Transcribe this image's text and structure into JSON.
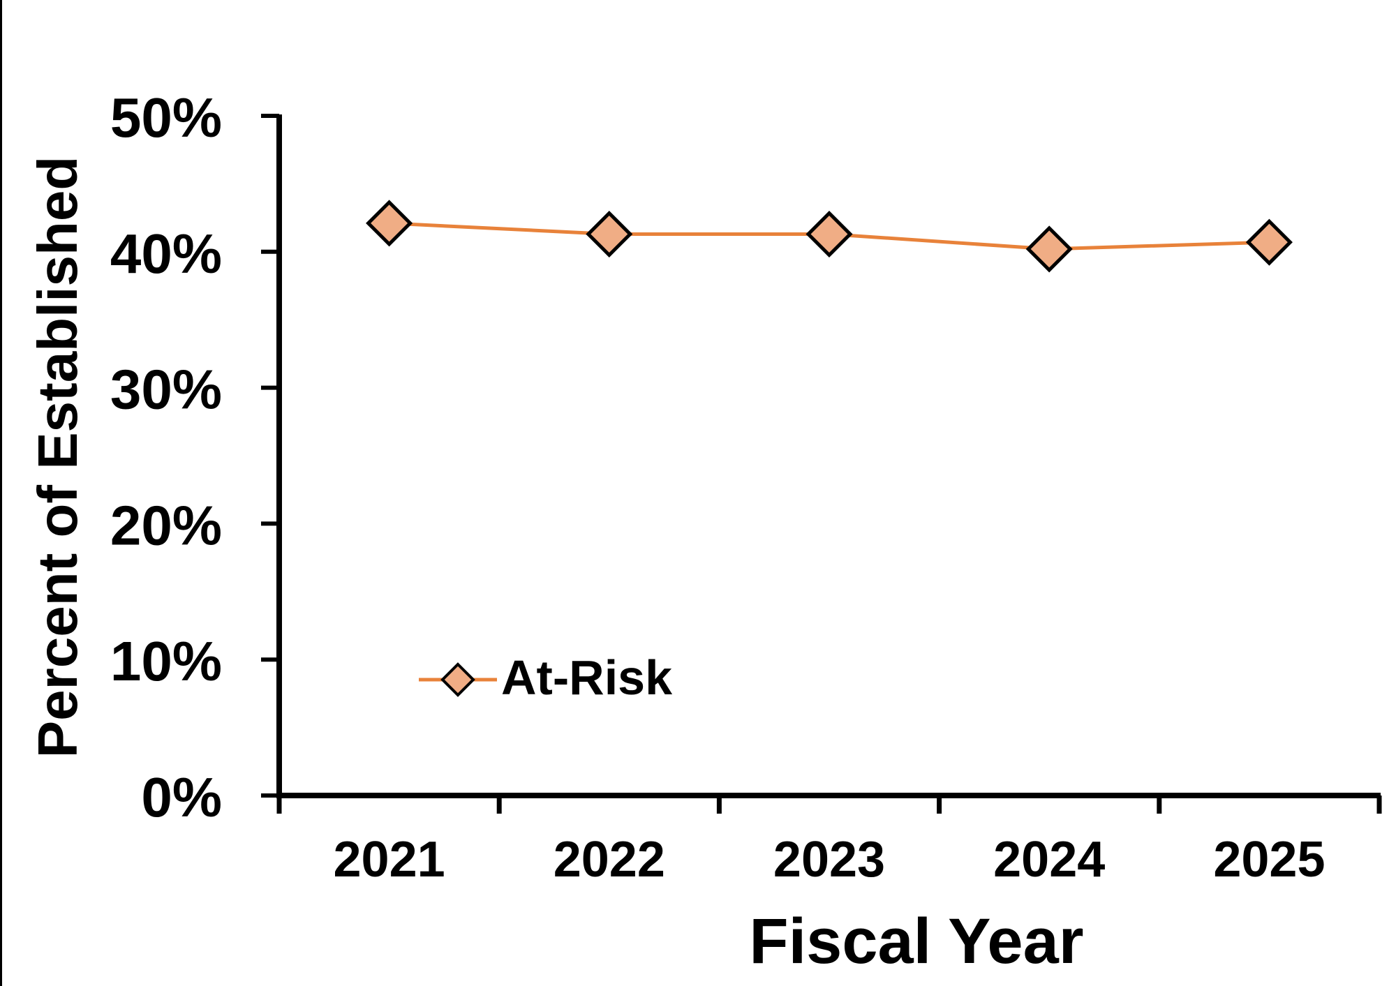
{
  "chart_data": {
    "type": "line",
    "title": "",
    "xlabel": "Fiscal Year",
    "ylabel": "Percent of Established",
    "categories": [
      "2021",
      "2022",
      "2023",
      "2024",
      "2025"
    ],
    "series": [
      {
        "name": "At-Risk",
        "values": [
          42.1,
          41.3,
          41.3,
          40.2,
          40.7
        ],
        "color": "#E8823A",
        "marker_fill": "#F0AD85",
        "marker": "diamond"
      }
    ],
    "ylim": [
      0,
      50
    ],
    "yticks": [
      0,
      10,
      20,
      30,
      40,
      50
    ],
    "ytick_labels": [
      "0%",
      "10%",
      "20%",
      "30%",
      "40%",
      "50%"
    ],
    "grid": false,
    "legend": "bottom-left"
  }
}
